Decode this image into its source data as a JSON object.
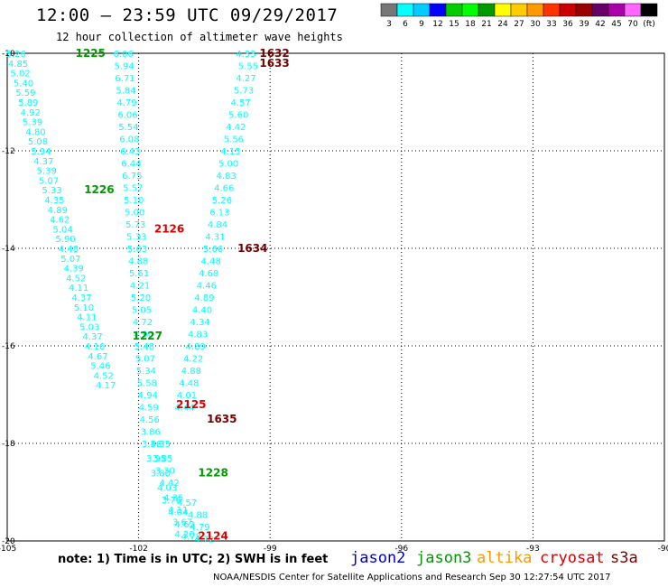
{
  "title": "12:00 – 23:59 UTC 09/29/2017",
  "subtitle": "12 hour collection of altimeter wave heights",
  "note": "note:  1) Time is in UTC;  2) SWH is in feet",
  "credit": "NOAA/NESDIS Center for Satellite Applications and Research    Sep 30 12:27:54 UTC 2017",
  "satellites": [
    {
      "name": "jason2",
      "color": "#0000cc"
    },
    {
      "name": "jason3",
      "color": "#009900"
    },
    {
      "name": "altika",
      "color": "#ff9900"
    },
    {
      "name": "cryosat",
      "color": "#dd0000"
    },
    {
      "name": "s3a",
      "color": "#770000"
    }
  ],
  "colorbar": {
    "colors": [
      "#777777",
      "#00ffff",
      "#00ccff",
      "#0000ff",
      "#00cc00",
      "#00ff00",
      "#009900",
      "#ffff00",
      "#ffcc00",
      "#ff9900",
      "#ff3300",
      "#cc0000",
      "#990000",
      "#660066",
      "#aa00aa",
      "#ff66ff",
      "#000000"
    ],
    "labels": [
      "3",
      "6",
      "9",
      "12",
      "15",
      "18",
      "21",
      "24",
      "27",
      "30",
      "33",
      "36",
      "39",
      "42",
      "45",
      "70",
      "(ft)"
    ]
  },
  "chart_data": {
    "type": "scatter",
    "xlabel": "",
    "ylabel": "",
    "xlim": [
      -105,
      -90
    ],
    "ylim": [
      -20,
      -10
    ],
    "x_ticks": [
      "-105",
      "-102",
      "-99",
      "-96",
      "-93",
      "-90"
    ],
    "y_ticks": [
      "-10",
      "-12",
      "-14",
      "-16",
      "-18",
      "-20"
    ],
    "grid": true,
    "tracks": [
      {
        "id": "1225",
        "color": "#009900",
        "label_pos": [
          -103.1,
          -10.0
        ],
        "points": [
          [
            -104.8,
            -10.0,
            "5.26"
          ],
          [
            -104.75,
            -10.2,
            "4.85"
          ],
          [
            -104.7,
            -10.4,
            "5.02"
          ],
          [
            -104.63,
            -10.6,
            "5.40"
          ],
          [
            -104.58,
            -10.8,
            "5.59"
          ],
          [
            -104.52,
            -11.0,
            "5.89"
          ],
          [
            -104.47,
            -11.2,
            "4.92"
          ],
          [
            -104.42,
            -11.4,
            "5.39"
          ],
          [
            -104.35,
            -11.6,
            "4.80"
          ],
          [
            -104.3,
            -11.8,
            "5.08"
          ],
          [
            -104.23,
            -12.0,
            "5.94"
          ],
          [
            -104.17,
            -12.2,
            "4.37"
          ],
          [
            -104.1,
            -12.4,
            "5.39"
          ],
          [
            -104.05,
            -12.6,
            "5.07"
          ],
          [
            -103.98,
            -12.8,
            "5.33"
          ],
          [
            -103.92,
            -13.0,
            "4.35"
          ],
          [
            -103.85,
            -13.2,
            "4.89"
          ],
          [
            -103.8,
            -13.4,
            "4.62"
          ],
          [
            -103.73,
            -13.6,
            "5.04"
          ],
          [
            -103.67,
            -13.8,
            "5.90"
          ],
          [
            -103.6,
            -14.0,
            "4.48"
          ],
          [
            -103.55,
            -14.2,
            "5.07"
          ],
          [
            -103.48,
            -14.4,
            "4.39"
          ],
          [
            -103.43,
            -14.6,
            "4.52"
          ],
          [
            -103.37,
            -14.8,
            "4.11"
          ],
          [
            -103.3,
            -15.0,
            "4.37"
          ],
          [
            -103.25,
            -15.2,
            "5.10"
          ],
          [
            -103.18,
            -15.4,
            "4.11"
          ],
          [
            -103.12,
            -15.6,
            "5.03"
          ],
          [
            -103.05,
            -15.8,
            "4.37"
          ],
          [
            -103.0,
            -16.0,
            "4.16"
          ],
          [
            -102.93,
            -16.2,
            "4.67"
          ],
          [
            -102.87,
            -16.4,
            "5.46"
          ],
          [
            -102.8,
            -16.6,
            "4.52"
          ],
          [
            -102.75,
            -16.8,
            "4.17"
          ]
        ]
      },
      {
        "id": "1226",
        "color": "#009900",
        "label_pos": [
          -102.9,
          -12.8
        ],
        "points": [
          [
            -102.35,
            -10.0,
            "6.06"
          ],
          [
            -102.33,
            -10.25,
            "5.94"
          ],
          [
            -102.31,
            -10.5,
            "6.71"
          ],
          [
            -102.29,
            -10.75,
            "5.84"
          ],
          [
            -102.27,
            -11.0,
            "4.79"
          ],
          [
            -102.25,
            -11.25,
            "6.06"
          ],
          [
            -102.23,
            -11.5,
            "5.54"
          ],
          [
            -102.21,
            -11.75,
            "6.08"
          ],
          [
            -102.19,
            -12.0,
            "6.43"
          ],
          [
            -102.17,
            -12.25,
            "6.44"
          ],
          [
            -102.15,
            -12.5,
            "6.75"
          ],
          [
            -102.13,
            -12.75,
            "5.57"
          ],
          [
            -102.11,
            -13.0,
            "5.10"
          ],
          [
            -102.09,
            -13.25,
            "5.00"
          ],
          [
            -102.07,
            -13.5,
            "5.73"
          ],
          [
            -102.05,
            -13.75,
            "5.33"
          ],
          [
            -102.03,
            -14.0,
            "5.63"
          ],
          [
            -102.01,
            -14.25,
            "4.88"
          ],
          [
            -101.99,
            -14.5,
            "5.61"
          ],
          [
            -101.97,
            -14.75,
            "4.21"
          ],
          [
            -101.95,
            -15.0,
            "5.20"
          ],
          [
            -101.93,
            -15.25,
            "5.05"
          ],
          [
            -101.91,
            -15.5,
            "4.72"
          ],
          [
            -101.89,
            -15.75,
            "4.90"
          ],
          [
            -101.87,
            -16.0,
            "5.48"
          ],
          [
            -101.85,
            -16.25,
            "5.07"
          ],
          [
            -101.83,
            -16.5,
            "5.34"
          ],
          [
            -101.81,
            -16.75,
            "5.58"
          ],
          [
            -101.79,
            -17.0,
            "4.94"
          ],
          [
            -101.77,
            -17.25,
            "4.59"
          ],
          [
            -101.75,
            -17.5,
            "4.56"
          ],
          [
            -101.73,
            -17.75,
            "3.86"
          ]
        ]
      },
      {
        "id": "1227",
        "color": "#009900",
        "label_pos": [
          -101.8,
          -15.8
        ],
        "points": []
      },
      {
        "id": "1228",
        "color": "#009900",
        "label_pos": [
          -100.3,
          -18.6
        ],
        "points": [
          [
            -101.5,
            -18.0,
            "4.35"
          ],
          [
            -101.45,
            -18.3,
            "3.85"
          ],
          [
            -101.4,
            -18.55,
            "3.30"
          ],
          [
            -101.3,
            -18.8,
            "4.42"
          ],
          [
            -101.2,
            -19.1,
            "4.35"
          ],
          [
            -101.1,
            -19.35,
            "4.11"
          ],
          [
            -101.0,
            -19.6,
            "3.67"
          ],
          [
            -100.95,
            -19.85,
            "4.20"
          ]
        ]
      },
      {
        "id": "1632",
        "color": "#770000",
        "label_pos": [
          -98.9,
          -10.0
        ],
        "points": [
          [
            -99.55,
            -10.0,
            "4.33"
          ],
          [
            -99.5,
            -10.25,
            "5.55"
          ],
          [
            -99.55,
            -10.5,
            "4.27"
          ],
          [
            -99.6,
            -10.75,
            "5.73"
          ],
          [
            -99.67,
            -11.0,
            "4.57"
          ],
          [
            -99.72,
            -11.25,
            "5.60"
          ],
          [
            -99.78,
            -11.5,
            "4.42"
          ],
          [
            -99.83,
            -11.75,
            "5.56"
          ],
          [
            -99.9,
            -12.0,
            "4.15"
          ],
          [
            -99.95,
            -12.25,
            "5.00"
          ],
          [
            -100.0,
            -12.5,
            "4.83"
          ],
          [
            -100.05,
            -12.75,
            "4.66"
          ],
          [
            -100.1,
            -13.0,
            "5.26"
          ],
          [
            -100.15,
            -13.25,
            "6.13"
          ],
          [
            -100.2,
            -13.5,
            "4.84"
          ],
          [
            -100.25,
            -13.75,
            "4.31"
          ],
          [
            -100.3,
            -14.0,
            "5.66"
          ],
          [
            -100.35,
            -14.25,
            "4.48"
          ],
          [
            -100.4,
            -14.5,
            "4.68"
          ],
          [
            -100.45,
            -14.75,
            "4.46"
          ],
          [
            -100.5,
            -15.0,
            "4.89"
          ],
          [
            -100.55,
            -15.25,
            "4.40"
          ],
          [
            -100.6,
            -15.5,
            "4.34"
          ],
          [
            -100.65,
            -15.75,
            "4.83"
          ],
          [
            -100.7,
            -16.0,
            "4.89"
          ],
          [
            -100.75,
            -16.25,
            "4.22"
          ],
          [
            -100.8,
            -16.5,
            "4.88"
          ],
          [
            -100.85,
            -16.75,
            "4.48"
          ],
          [
            -100.9,
            -17.0,
            "4.01"
          ],
          [
            -100.95,
            -17.25,
            "4.44"
          ]
        ]
      },
      {
        "id": "1633",
        "color": "#770000",
        "label_pos": [
          -98.9,
          -10.2
        ],
        "points": []
      },
      {
        "id": "1634",
        "color": "#770000",
        "label_pos": [
          -99.4,
          -14.0
        ],
        "points": []
      },
      {
        "id": "1635",
        "color": "#770000",
        "label_pos": [
          -100.1,
          -17.5
        ],
        "points": []
      },
      {
        "id": "2126",
        "color": "#dd0000",
        "label_pos": [
          -101.3,
          -13.6
        ],
        "points": []
      },
      {
        "id": "2125",
        "color": "#dd0000",
        "label_pos": [
          -100.8,
          -17.2
        ],
        "points": []
      },
      {
        "id": "2124",
        "color": "#dd0000",
        "label_pos": [
          -100.3,
          -19.9
        ],
        "points": [
          [
            -101.7,
            -18.0,
            "3.56"
          ],
          [
            -101.6,
            -18.3,
            "3.95"
          ],
          [
            -101.5,
            -18.6,
            "3.80"
          ],
          [
            -101.35,
            -18.9,
            "4.03"
          ],
          [
            -101.25,
            -19.15,
            "3.76"
          ],
          [
            -101.1,
            -19.4,
            "4.04"
          ],
          [
            -100.95,
            -19.65,
            "4.62"
          ],
          [
            -100.8,
            -19.9,
            "4.78"
          ],
          [
            -100.6,
            -19.7,
            "4.79"
          ],
          [
            -100.65,
            -19.45,
            "4.88"
          ],
          [
            -100.5,
            -19.95,
            "4.72"
          ],
          [
            -100.9,
            -19.2,
            "4.57"
          ]
        ]
      }
    ]
  }
}
